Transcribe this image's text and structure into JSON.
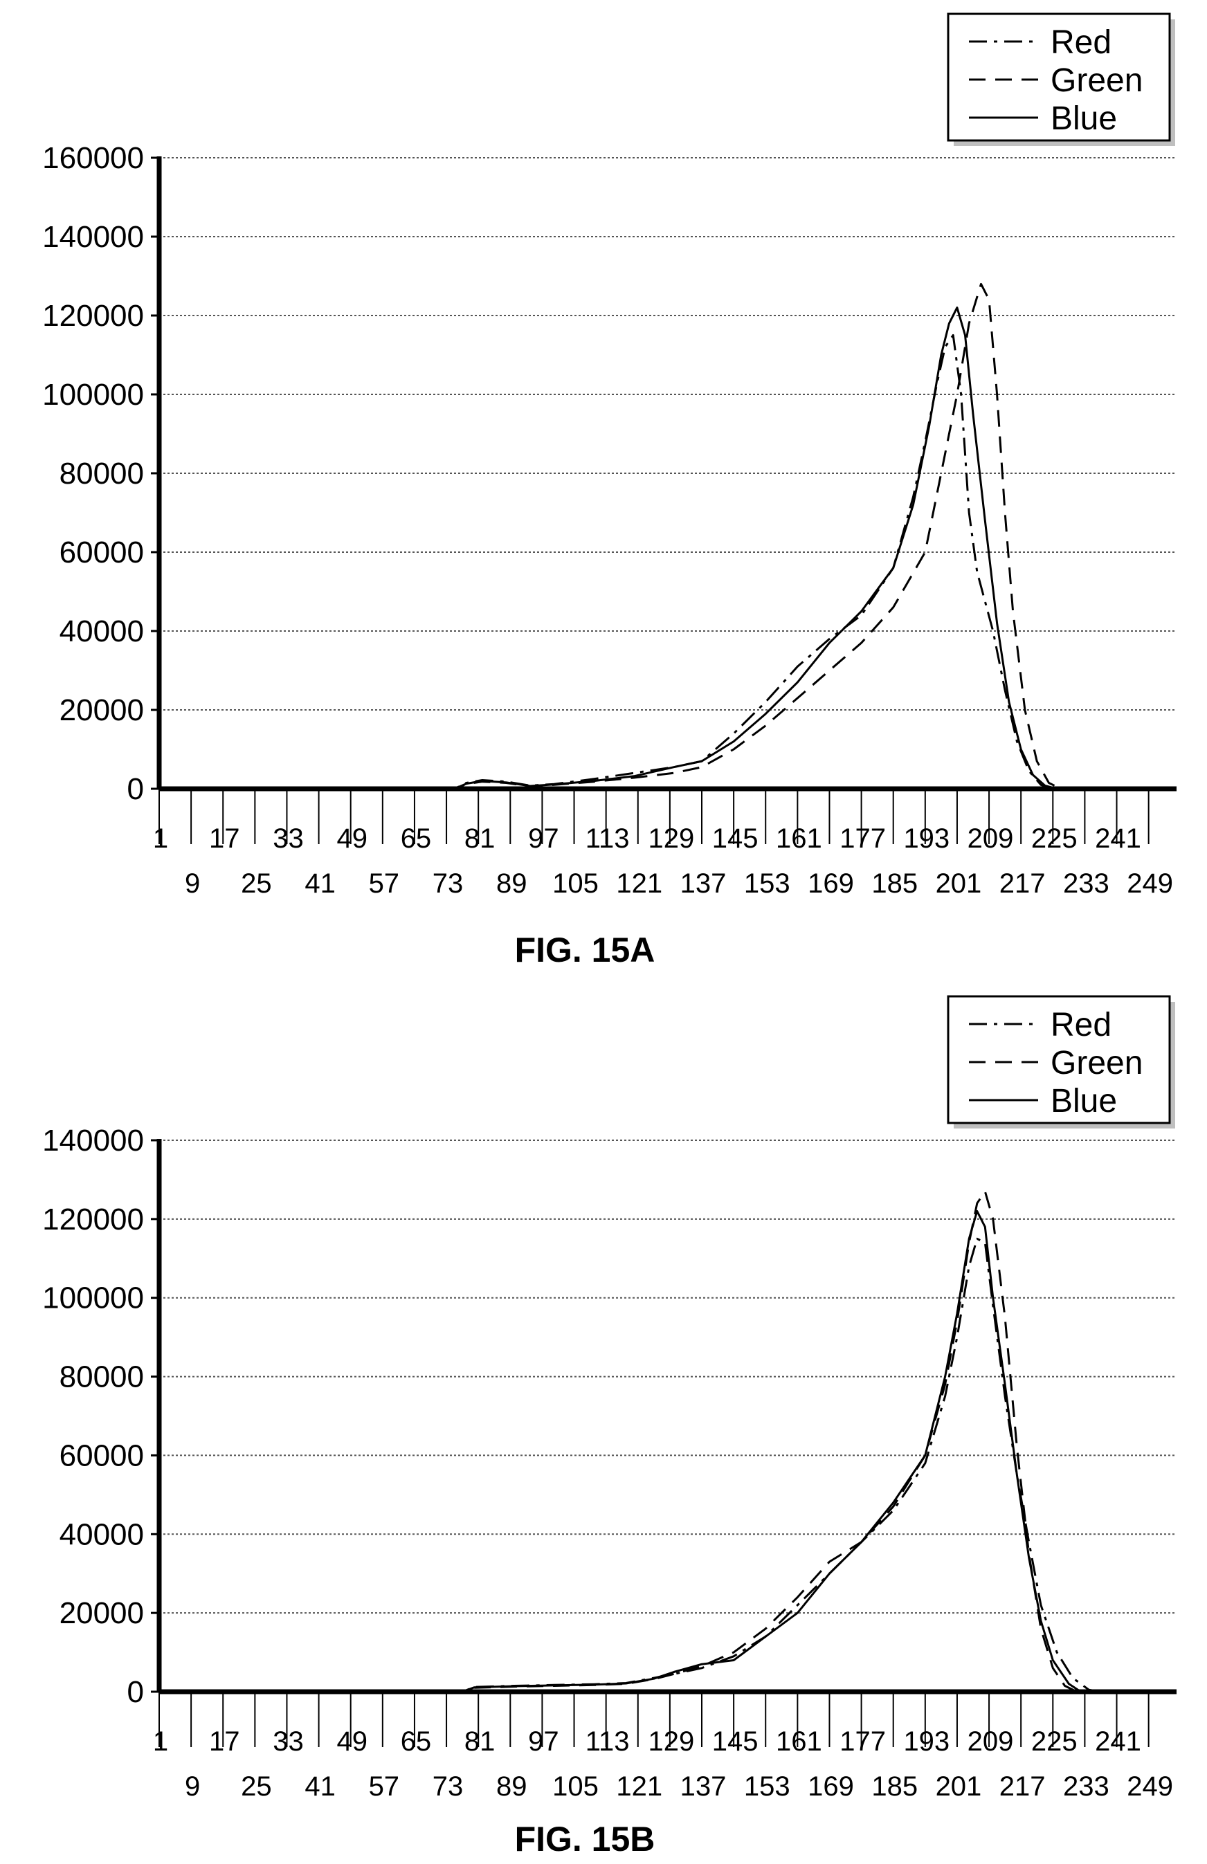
{
  "colors": {
    "ink": "#000000",
    "grid": "#555555",
    "legend_shadow": "#bfbfbf"
  },
  "chart_data": [
    {
      "type": "line",
      "title": "",
      "xlabel": "",
      "ylabel": "",
      "figure_label": "FIG. 15A",
      "ylim": [
        0,
        160000
      ],
      "yticks": [
        0,
        20000,
        40000,
        60000,
        80000,
        100000,
        120000,
        140000,
        160000
      ],
      "ytick_labels": [
        "0",
        "20000",
        "40000",
        "60000",
        "80000",
        "100000",
        "120000",
        "140000",
        "160000"
      ],
      "xlim": [
        1,
        256
      ],
      "xticks_row1": [
        "1",
        "17",
        "33",
        "49",
        "65",
        "81",
        "97",
        "113",
        "129",
        "145",
        "161",
        "177",
        "193",
        "209",
        "225",
        "241"
      ],
      "xticks_row2": [
        "9",
        "25",
        "41",
        "57",
        "73",
        "89",
        "105",
        "121",
        "137",
        "153",
        "169",
        "185",
        "201",
        "217",
        "233",
        "249"
      ],
      "grid": true,
      "legend": "top-right",
      "series": [
        {
          "name": "Red",
          "style": "dash-dot",
          "points": [
            [
              1,
              0
            ],
            [
              75,
              0
            ],
            [
              78,
              1500
            ],
            [
              82,
              2200
            ],
            [
              88,
              1800
            ],
            [
              94,
              800
            ],
            [
              100,
              1200
            ],
            [
              110,
              2500
            ],
            [
              120,
              4000
            ],
            [
              130,
              5500
            ],
            [
              137,
              7000
            ],
            [
              145,
              14000
            ],
            [
              153,
              22000
            ],
            [
              161,
              31000
            ],
            [
              169,
              38000
            ],
            [
              177,
              44000
            ],
            [
              185,
              56000
            ],
            [
              190,
              74000
            ],
            [
              193,
              88000
            ],
            [
              196,
              103000
            ],
            [
              198,
              112000
            ],
            [
              200,
              115000
            ],
            [
              202,
              100000
            ],
            [
              204,
              70000
            ],
            [
              206,
              55000
            ],
            [
              210,
              40000
            ],
            [
              213,
              25000
            ],
            [
              216,
              12000
            ],
            [
              219,
              4500
            ],
            [
              222,
              1000
            ],
            [
              225,
              0
            ],
            [
              256,
              0
            ]
          ]
        },
        {
          "name": "Green",
          "style": "dashed",
          "points": [
            [
              1,
              0
            ],
            [
              75,
              0
            ],
            [
              78,
              1200
            ],
            [
              82,
              1800
            ],
            [
              88,
              1500
            ],
            [
              94,
              600
            ],
            [
              100,
              1000
            ],
            [
              110,
              1800
            ],
            [
              120,
              2800
            ],
            [
              130,
              4000
            ],
            [
              137,
              5500
            ],
            [
              145,
              10000
            ],
            [
              153,
              16000
            ],
            [
              161,
              23000
            ],
            [
              169,
              30000
            ],
            [
              177,
              37000
            ],
            [
              185,
              46000
            ],
            [
              193,
              60000
            ],
            [
              197,
              80000
            ],
            [
              201,
              100000
            ],
            [
              204,
              118000
            ],
            [
              207,
              128000
            ],
            [
              209,
              124000
            ],
            [
              211,
              100000
            ],
            [
              213,
              70000
            ],
            [
              215,
              45000
            ],
            [
              218,
              20000
            ],
            [
              221,
              7000
            ],
            [
              224,
              1500
            ],
            [
              227,
              0
            ],
            [
              256,
              0
            ]
          ]
        },
        {
          "name": "Blue",
          "style": "solid",
          "points": [
            [
              1,
              0
            ],
            [
              75,
              0
            ],
            [
              78,
              1300
            ],
            [
              82,
              2000
            ],
            [
              88,
              1600
            ],
            [
              94,
              700
            ],
            [
              100,
              1100
            ],
            [
              110,
              2000
            ],
            [
              120,
              3200
            ],
            [
              130,
              5500
            ],
            [
              137,
              7000
            ],
            [
              145,
              12000
            ],
            [
              153,
              19000
            ],
            [
              161,
              27000
            ],
            [
              169,
              37000
            ],
            [
              177,
              45000
            ],
            [
              185,
              56000
            ],
            [
              190,
              72000
            ],
            [
              194,
              92000
            ],
            [
              197,
              110000
            ],
            [
              199,
              118000
            ],
            [
              201,
              122000
            ],
            [
              203,
              115000
            ],
            [
              205,
              95000
            ],
            [
              208,
              68000
            ],
            [
              211,
              42000
            ],
            [
              214,
              22000
            ],
            [
              217,
              10000
            ],
            [
              220,
              3500
            ],
            [
              223,
              800
            ],
            [
              226,
              0
            ],
            [
              256,
              0
            ]
          ]
        }
      ]
    },
    {
      "type": "line",
      "title": "",
      "xlabel": "",
      "ylabel": "",
      "figure_label": "FIG. 15B",
      "ylim": [
        0,
        140000
      ],
      "yticks": [
        0,
        20000,
        40000,
        60000,
        80000,
        100000,
        120000,
        140000
      ],
      "ytick_labels": [
        "0",
        "20000",
        "40000",
        "60000",
        "80000",
        "100000",
        "120000",
        "140000"
      ],
      "xlim": [
        1,
        256
      ],
      "xticks_row1": [
        "1",
        "17",
        "33",
        "49",
        "65",
        "81",
        "97",
        "113",
        "129",
        "145",
        "161",
        "177",
        "193",
        "209",
        "225",
        "241"
      ],
      "xticks_row2": [
        "9",
        "25",
        "41",
        "57",
        "73",
        "89",
        "105",
        "121",
        "137",
        "153",
        "169",
        "185",
        "201",
        "217",
        "233",
        "249"
      ],
      "grid": true,
      "legend": "top-right",
      "series": [
        {
          "name": "Red",
          "style": "dash-dot",
          "points": [
            [
              1,
              0
            ],
            [
              77,
              0
            ],
            [
              80,
              1200
            ],
            [
              90,
              1500
            ],
            [
              100,
              1700
            ],
            [
              110,
              1900
            ],
            [
              118,
              2200
            ],
            [
              125,
              3500
            ],
            [
              130,
              4500
            ],
            [
              137,
              6000
            ],
            [
              145,
              9000
            ],
            [
              153,
              14000
            ],
            [
              161,
              22000
            ],
            [
              169,
              30000
            ],
            [
              177,
              38000
            ],
            [
              185,
              46000
            ],
            [
              193,
              58000
            ],
            [
              198,
              75000
            ],
            [
              201,
              90000
            ],
            [
              204,
              108000
            ],
            [
              206,
              115000
            ],
            [
              208,
              114000
            ],
            [
              210,
              98000
            ],
            [
              213,
              75000
            ],
            [
              216,
              55000
            ],
            [
              219,
              38000
            ],
            [
              222,
              22000
            ],
            [
              226,
              10000
            ],
            [
              230,
              3500
            ],
            [
              234,
              500
            ],
            [
              237,
              0
            ],
            [
              256,
              0
            ]
          ]
        },
        {
          "name": "Green",
          "style": "dashed",
          "points": [
            [
              1,
              0
            ],
            [
              77,
              0
            ],
            [
              80,
              1000
            ],
            [
              90,
              1300
            ],
            [
              100,
              1500
            ],
            [
              110,
              1700
            ],
            [
              118,
              2000
            ],
            [
              125,
              3200
            ],
            [
              130,
              4500
            ],
            [
              137,
              6500
            ],
            [
              145,
              10000
            ],
            [
              153,
              16000
            ],
            [
              161,
              24000
            ],
            [
              169,
              33000
            ],
            [
              177,
              38000
            ],
            [
              185,
              47000
            ],
            [
              193,
              60000
            ],
            [
              198,
              78000
            ],
            [
              201,
              94000
            ],
            [
              204,
              114000
            ],
            [
              206,
              124000
            ],
            [
              208,
              127000
            ],
            [
              210,
              120000
            ],
            [
              213,
              95000
            ],
            [
              216,
              62000
            ],
            [
              219,
              35000
            ],
            [
              222,
              16000
            ],
            [
              225,
              6000
            ],
            [
              228,
              1500
            ],
            [
              231,
              0
            ],
            [
              256,
              0
            ]
          ]
        },
        {
          "name": "Blue",
          "style": "solid",
          "points": [
            [
              1,
              0
            ],
            [
              77,
              0
            ],
            [
              80,
              1100
            ],
            [
              90,
              1400
            ],
            [
              100,
              1600
            ],
            [
              110,
              1800
            ],
            [
              118,
              2100
            ],
            [
              125,
              3300
            ],
            [
              130,
              5000
            ],
            [
              137,
              7000
            ],
            [
              145,
              8000
            ],
            [
              153,
              14000
            ],
            [
              161,
              20000
            ],
            [
              169,
              30000
            ],
            [
              177,
              38000
            ],
            [
              185,
              48000
            ],
            [
              193,
              60000
            ],
            [
              198,
              80000
            ],
            [
              201,
              96000
            ],
            [
              204,
              115000
            ],
            [
              206,
              122000
            ],
            [
              208,
              118000
            ],
            [
              210,
              100000
            ],
            [
              213,
              78000
            ],
            [
              216,
              55000
            ],
            [
              219,
              34000
            ],
            [
              222,
              18000
            ],
            [
              225,
              8000
            ],
            [
              229,
              2000
            ],
            [
              232,
              0
            ],
            [
              256,
              0
            ]
          ]
        }
      ]
    }
  ]
}
